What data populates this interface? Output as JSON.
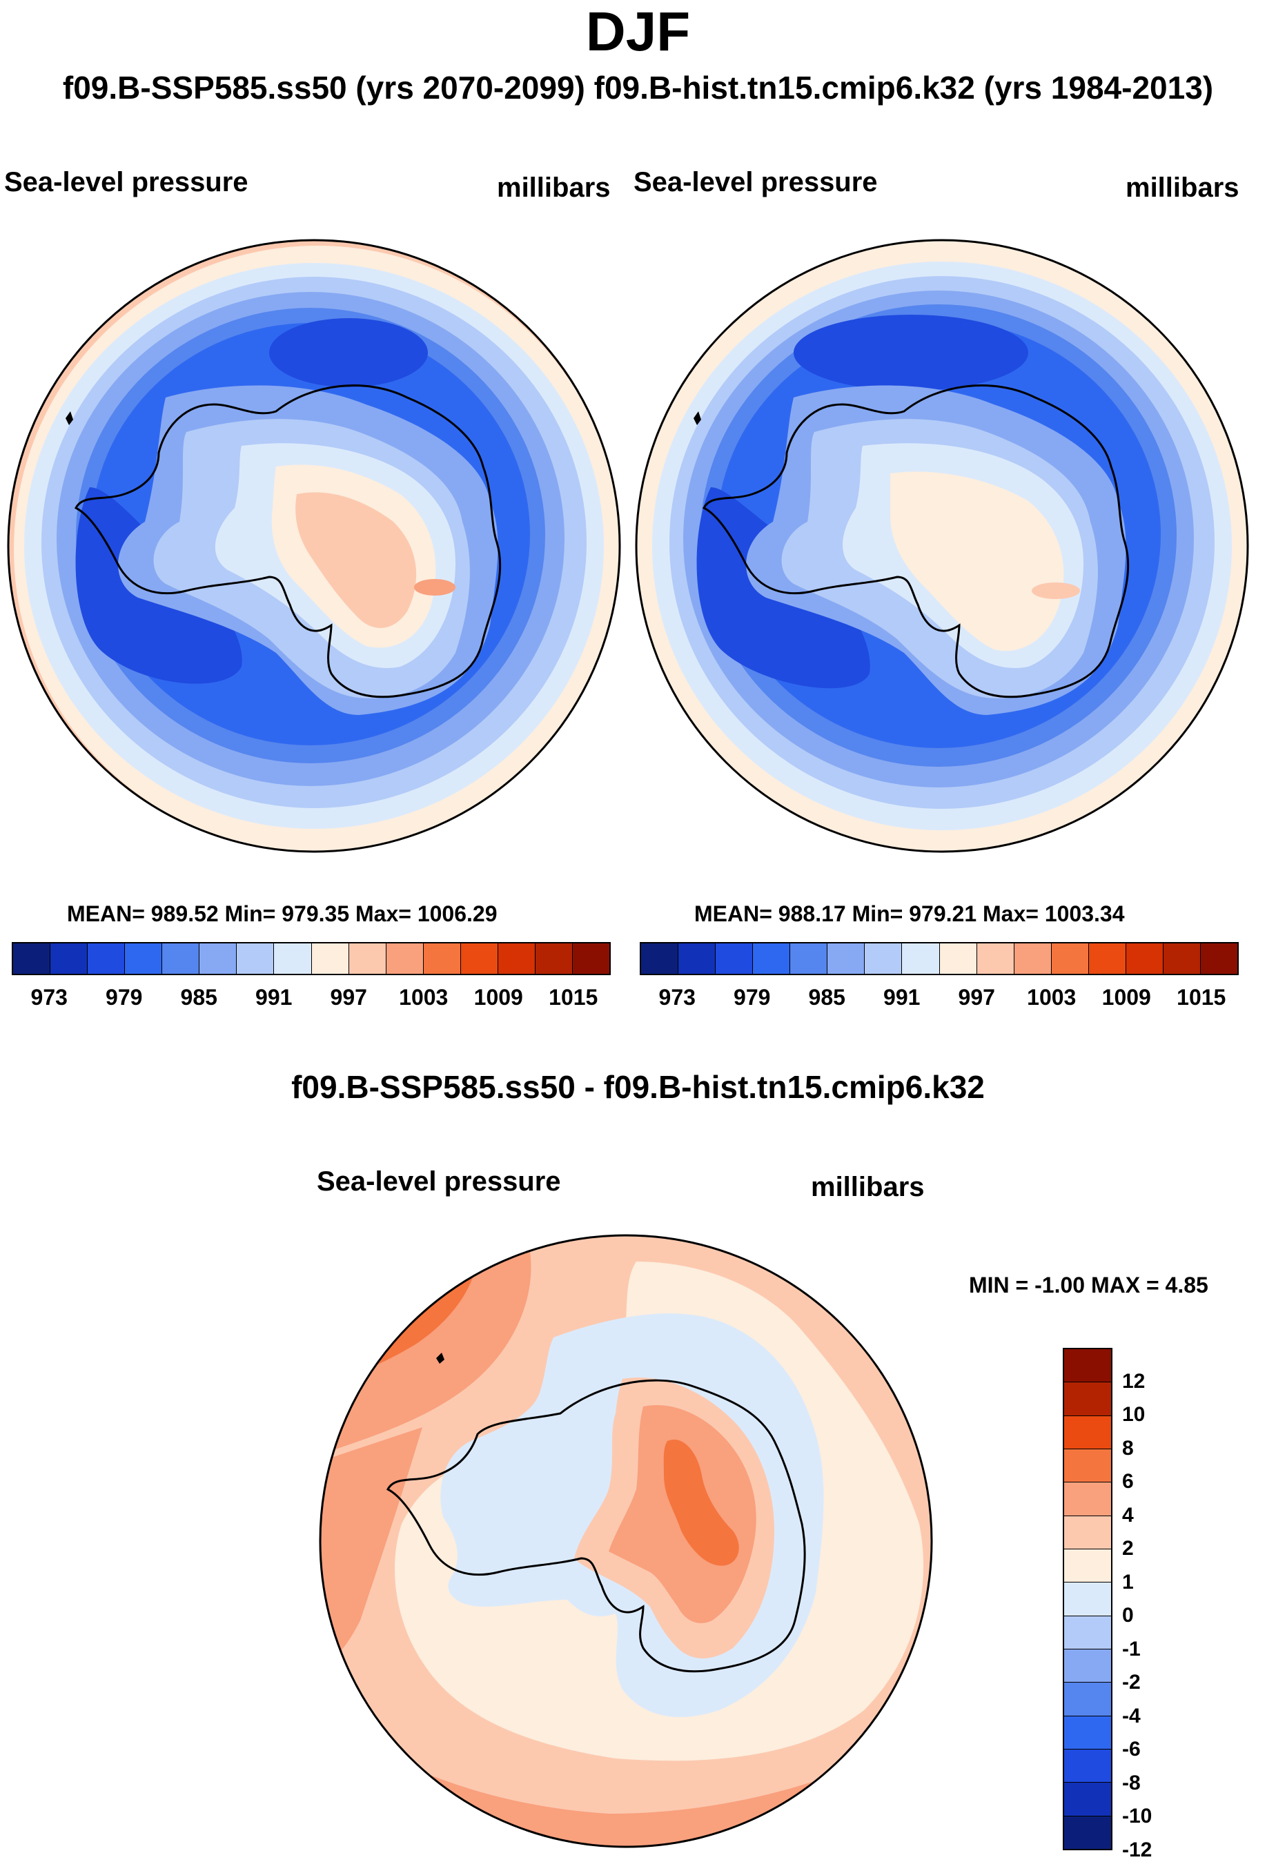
{
  "title": "DJF",
  "case_line": "f09.B-SSP585.ss50 (yrs 2070-2099)  f09.B-hist.tn15.cmip6.k32 (yrs 1984-2013)",
  "diff_title": "f09.B-SSP585.ss50 - f09.B-hist.tn15.cmip6.k32",
  "panels": [
    {
      "variable": "Sea-level pressure",
      "units": "millibars",
      "stats": "MEAN= 989.52  Min= 979.35  Max= 1006.29"
    },
    {
      "variable": "Sea-level pressure",
      "units": "millibars",
      "stats": "MEAN= 988.17  Min= 979.21  Max= 1003.34"
    }
  ],
  "diff_panel": {
    "variable": "Sea-level pressure",
    "units": "millibars",
    "stats": "MIN =  -1.00 MAX =   4.85"
  },
  "abs_colorbar": {
    "colors": [
      "#0b1f7a",
      "#1131b8",
      "#1f4be0",
      "#2f68f0",
      "#5585ee",
      "#87a9f3",
      "#b3cbf8",
      "#dbeafb",
      "#fdeede",
      "#fcc9af",
      "#f9a07d",
      "#f5753f",
      "#eb4b10",
      "#d63204",
      "#b32302",
      "#8a0f00"
    ],
    "labels": [
      "973",
      "979",
      "985",
      "991",
      "997",
      "1003",
      "1009",
      "1015"
    ]
  },
  "diff_colorbar": {
    "colors": [
      "#8a0f00",
      "#b32302",
      "#eb4b10",
      "#f5753f",
      "#f9a07d",
      "#fcc9af",
      "#fdeede",
      "#dbeafb",
      "#b3cbf8",
      "#87a9f3",
      "#5585ee",
      "#2f68f0",
      "#1f4be0",
      "#1131b8",
      "#0b1f7a"
    ],
    "labels": [
      "12",
      "10",
      "8",
      "6",
      "4",
      "2",
      "1",
      "0",
      "-1",
      "-2",
      "-4",
      "-6",
      "-8",
      "-10",
      "-12"
    ]
  }
}
